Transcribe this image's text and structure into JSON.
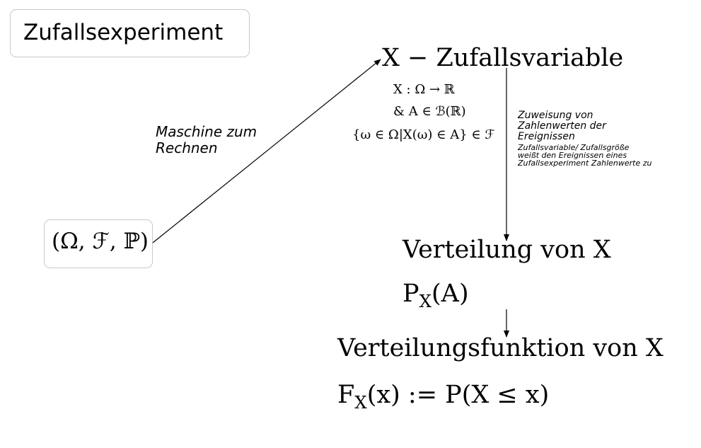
{
  "title": "Zufallsexperiment",
  "probability_space": "(Ω, ℱ, ℙ)",
  "arrow_label": "Maschine zum Rechnen",
  "random_variable": {
    "heading": "X − Zufallsvariable",
    "definition": [
      "X : Ω → ℝ",
      "&     A ∈ ℬ(ℝ)",
      "{ω ∈ Ω|X(ω) ∈ A} ∈ ℱ"
    ]
  },
  "note": {
    "main": "Zuweisung von Zahlenwerten der Ereignissen",
    "sub": "Zufallsvariable/ Zufallsgröße weißt den Ereignissen eines Zufallsexperiment Zahlenwerte zu"
  },
  "distribution": {
    "heading": "Verteilung von X",
    "formula": "P_X(A)"
  },
  "distribution_function": {
    "heading": "Verteilungsfunktion von X",
    "formula": "F_X(x) := P(X ≤ x)"
  }
}
